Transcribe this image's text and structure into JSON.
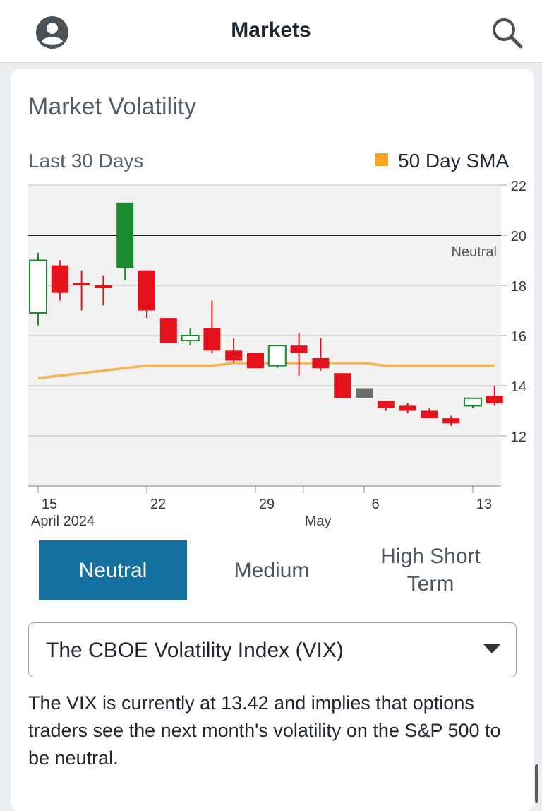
{
  "header": {
    "title": "Markets",
    "left_icon": "account-circle-icon",
    "right_icon": "search-icon"
  },
  "card": {
    "title": "Market Volatility",
    "period_label": "Last 30 Days",
    "legend_label": "50 Day SMA"
  },
  "colors": {
    "up": "#1a8a2e",
    "down": "#e3121c",
    "flat": "#6e6e6e",
    "sma": "#f5b553",
    "accent": "#1470a0"
  },
  "chart_data": {
    "type": "candlestick",
    "y_ticks": [
      22,
      20,
      18,
      16,
      14,
      12
    ],
    "ylim": [
      10.0,
      22.0
    ],
    "grid": true,
    "reference_line": {
      "value": 20,
      "label": "Neutral"
    },
    "x_ticks": [
      {
        "label": "15",
        "sub": "April 2024",
        "index": 0
      },
      {
        "label": "22",
        "index": 5
      },
      {
        "label": "29",
        "index": 10
      },
      {
        "label": "May",
        "index": 12.2,
        "sub_only": true
      },
      {
        "label": "6",
        "index": 15
      },
      {
        "label": "13",
        "index": 20
      }
    ],
    "candles": [
      {
        "date": "Apr 15",
        "open": 16.9,
        "close": 19.0,
        "high": 19.3,
        "low": 16.4,
        "dir": "up"
      },
      {
        "date": "Apr 16",
        "open": 18.8,
        "close": 17.7,
        "high": 19.0,
        "low": 17.4,
        "dir": "down"
      },
      {
        "date": "Apr 17",
        "open": 18.1,
        "close": 18.0,
        "high": 18.6,
        "low": 17.0,
        "dir": "down"
      },
      {
        "date": "Apr 18",
        "open": 18.0,
        "close": 17.9,
        "high": 18.4,
        "low": 17.2,
        "dir": "down"
      },
      {
        "date": "Apr 19",
        "open": 18.7,
        "close": 21.3,
        "high": 21.3,
        "low": 18.2,
        "dir": "up"
      },
      {
        "date": "Apr 22",
        "open": 18.6,
        "close": 17.0,
        "high": 18.6,
        "low": 16.7,
        "dir": "down"
      },
      {
        "date": "Apr 23",
        "open": 16.7,
        "close": 15.7,
        "high": 16.7,
        "low": 15.7,
        "dir": "down"
      },
      {
        "date": "Apr 24",
        "open": 15.8,
        "close": 16.0,
        "high": 16.3,
        "low": 15.6,
        "dir": "up"
      },
      {
        "date": "Apr 25",
        "open": 16.3,
        "close": 15.4,
        "high": 17.4,
        "low": 15.3,
        "dir": "down"
      },
      {
        "date": "Apr 26",
        "open": 15.4,
        "close": 15.0,
        "high": 15.9,
        "low": 14.9,
        "dir": "down"
      },
      {
        "date": "Apr 29",
        "open": 15.3,
        "close": 14.7,
        "high": 15.3,
        "low": 14.7,
        "dir": "down"
      },
      {
        "date": "Apr 30",
        "open": 14.8,
        "close": 15.6,
        "high": 15.6,
        "low": 14.7,
        "dir": "up"
      },
      {
        "date": "May 1",
        "open": 15.6,
        "close": 15.3,
        "high": 16.1,
        "low": 14.4,
        "dir": "down"
      },
      {
        "date": "May 2",
        "open": 15.1,
        "close": 14.7,
        "high": 15.9,
        "low": 14.6,
        "dir": "down"
      },
      {
        "date": "May 3",
        "open": 14.5,
        "close": 13.5,
        "high": 14.5,
        "low": 13.5,
        "dir": "down"
      },
      {
        "date": "May 6",
        "open": 13.9,
        "close": 13.5,
        "high": 13.9,
        "low": 13.5,
        "dir": "flat"
      },
      {
        "date": "May 7",
        "open": 13.4,
        "close": 13.1,
        "high": 13.4,
        "low": 13.0,
        "dir": "down"
      },
      {
        "date": "May 8",
        "open": 13.2,
        "close": 13.0,
        "high": 13.3,
        "low": 12.9,
        "dir": "down"
      },
      {
        "date": "May 9",
        "open": 13.0,
        "close": 12.7,
        "high": 13.1,
        "low": 12.7,
        "dir": "down"
      },
      {
        "date": "May 10",
        "open": 12.7,
        "close": 12.5,
        "high": 12.8,
        "low": 12.4,
        "dir": "down"
      },
      {
        "date": "May 13",
        "open": 13.2,
        "close": 13.5,
        "high": 13.5,
        "low": 13.1,
        "dir": "up"
      },
      {
        "date": "May 14",
        "open": 13.6,
        "close": 13.3,
        "high": 14.0,
        "low": 13.2,
        "dir": "down"
      }
    ],
    "sma_series": {
      "name": "50 Day SMA",
      "values": [
        14.3,
        14.4,
        14.5,
        14.6,
        14.7,
        14.8,
        14.8,
        14.8,
        14.8,
        14.9,
        14.9,
        14.9,
        14.9,
        14.9,
        14.9,
        14.9,
        14.8,
        14.8,
        14.8,
        14.8,
        14.8,
        14.8
      ]
    }
  },
  "segments": {
    "neutral": "Neutral",
    "medium": "Medium",
    "high_line1": "High Short",
    "high_line2": "Term"
  },
  "dropdown": {
    "selected": "The CBOE Volatility Index (VIX)"
  },
  "description": "The VIX is currently at 13.42 and implies that options traders see the next month's volatility on the S&P 500 to be neutral."
}
